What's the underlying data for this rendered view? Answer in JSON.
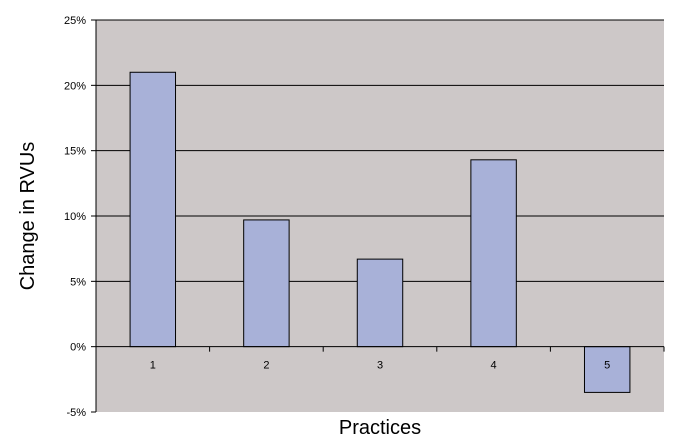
{
  "chart_data": {
    "type": "bar",
    "title": "",
    "xlabel": "Practices",
    "ylabel": "Change in RVUs",
    "categories": [
      "1",
      "2",
      "3",
      "4",
      "5"
    ],
    "values": [
      21.0,
      9.7,
      6.7,
      14.3,
      -3.5
    ],
    "ylim": [
      -5,
      25
    ],
    "yticks": [
      -5,
      0,
      5,
      10,
      15,
      20,
      25
    ],
    "ytick_labels": [
      "-5%",
      "0%",
      "5%",
      "10%",
      "15%",
      "20%",
      "25%"
    ],
    "grid": "horizontal",
    "legend": "none"
  },
  "colors": {
    "plot_background": "#cdc8c8",
    "bar_fill": "#a8b1d8",
    "bar_stroke": "#000000",
    "gridline": "#000000"
  }
}
